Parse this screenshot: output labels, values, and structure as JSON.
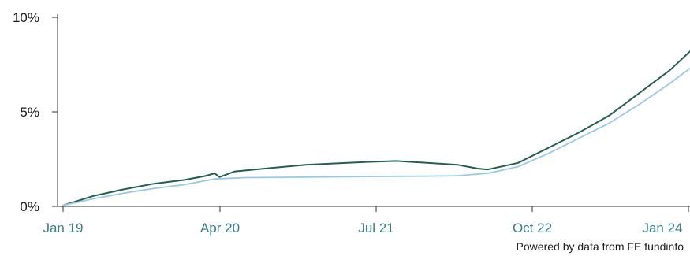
{
  "chart_data": {
    "type": "line",
    "title": "",
    "xlabel": "",
    "ylabel": "",
    "x_ticks": [
      "Jan 19",
      "Apr 20",
      "Jul 21",
      "Oct 22",
      "Jan 24"
    ],
    "y_ticks": [
      "0%",
      "5%",
      "10%"
    ],
    "ylim": [
      0,
      10
    ],
    "grid": false,
    "legend": "none",
    "series": [
      {
        "color": "#245e4f",
        "points": [
          [
            "2019-01",
            0.05
          ],
          [
            "2019-04",
            0.55
          ],
          [
            "2019-07",
            0.9
          ],
          [
            "2019-10",
            1.2
          ],
          [
            "2020-01",
            1.4
          ],
          [
            "2020-03",
            1.6
          ],
          [
            "2020-04",
            1.75
          ],
          [
            "2020-04-15",
            1.55
          ],
          [
            "2020-06",
            1.85
          ],
          [
            "2020-10",
            2.05
          ],
          [
            "2021-01",
            2.2
          ],
          [
            "2021-07",
            2.35
          ],
          [
            "2021-10",
            2.4
          ],
          [
            "2022-01",
            2.3
          ],
          [
            "2022-04",
            2.2
          ],
          [
            "2022-06",
            2.0
          ],
          [
            "2022-07",
            1.95
          ],
          [
            "2022-10",
            2.3
          ],
          [
            "2023-01",
            3.1
          ],
          [
            "2023-04",
            3.9
          ],
          [
            "2023-07",
            4.8
          ],
          [
            "2023-10",
            6.0
          ],
          [
            "2024-01",
            7.2
          ],
          [
            "2024-03",
            8.2
          ]
        ]
      },
      {
        "color": "#99c9ea",
        "points": [
          [
            "2019-01",
            0.05
          ],
          [
            "2019-04",
            0.4
          ],
          [
            "2019-07",
            0.7
          ],
          [
            "2019-10",
            0.95
          ],
          [
            "2020-01",
            1.15
          ],
          [
            "2020-04",
            1.45
          ],
          [
            "2020-07",
            1.52
          ],
          [
            "2021-01",
            1.55
          ],
          [
            "2021-07",
            1.58
          ],
          [
            "2022-01",
            1.6
          ],
          [
            "2022-04",
            1.62
          ],
          [
            "2022-07",
            1.75
          ],
          [
            "2022-10",
            2.1
          ],
          [
            "2023-01",
            2.8
          ],
          [
            "2023-04",
            3.6
          ],
          [
            "2023-07",
            4.4
          ],
          [
            "2023-10",
            5.4
          ],
          [
            "2024-01",
            6.5
          ],
          [
            "2024-03",
            7.3
          ]
        ]
      }
    ]
  },
  "attribution": "Powered by data from FE fundinfo"
}
